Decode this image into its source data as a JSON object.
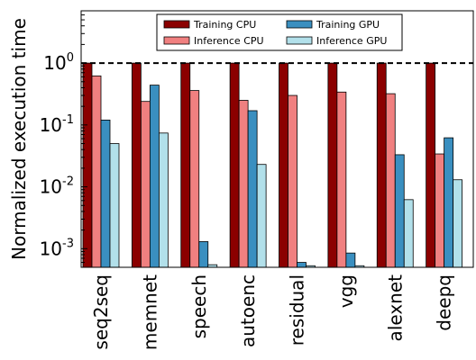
{
  "chart_data": {
    "type": "bar",
    "title": "",
    "xlabel": "",
    "ylabel": "Normalized execution time",
    "yscale": "log",
    "ylim": [
      0.0005,
      7
    ],
    "yticks": [
      {
        "value": 1,
        "base": "10",
        "exp": "0"
      },
      {
        "value": 0.1,
        "base": "10",
        "exp": "-1"
      },
      {
        "value": 0.01,
        "base": "10",
        "exp": "-2"
      },
      {
        "value": 0.001,
        "base": "10",
        "exp": "-3"
      }
    ],
    "reference_line": {
      "value": 1,
      "style": "dashed"
    },
    "grid": false,
    "legend_position": "top-center",
    "legend_columns": 2,
    "categories": [
      "seq2seq",
      "memnet",
      "speech",
      "autoenc",
      "residual",
      "vgg",
      "alexnet",
      "deepq"
    ],
    "series": [
      {
        "name": "Training CPU",
        "color": "#8b0000",
        "values": [
          1.0,
          1.0,
          1.0,
          1.0,
          1.0,
          1.0,
          1.0,
          1.0
        ]
      },
      {
        "name": "Inference CPU",
        "color": "#f08080",
        "values": [
          0.62,
          0.24,
          0.36,
          0.25,
          0.3,
          0.34,
          0.32,
          0.034
        ]
      },
      {
        "name": "Training GPU",
        "color": "#3a8fc0",
        "values": [
          0.12,
          0.44,
          0.0013,
          0.17,
          0.0006,
          0.00085,
          0.033,
          0.062
        ]
      },
      {
        "name": "Inference GPU",
        "color": "#b2e0ea",
        "values": [
          0.05,
          0.074,
          0.00055,
          0.023,
          0.00053,
          0.00053,
          0.0062,
          0.013
        ]
      }
    ]
  }
}
